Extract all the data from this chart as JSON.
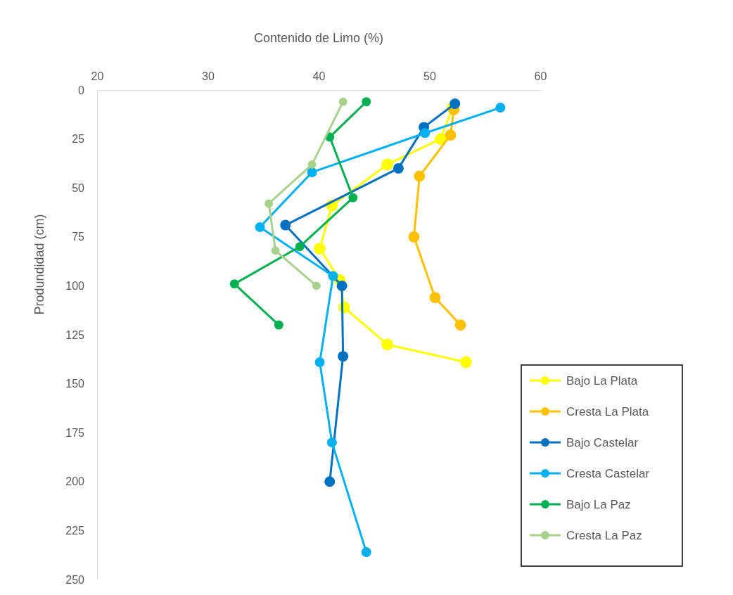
{
  "chart_data": {
    "type": "line",
    "xlabel": "Contenido de Limo (%)",
    "ylabel": "Produndidad (cm)",
    "xlim": [
      20,
      60
    ],
    "xticks": [
      20,
      30,
      40,
      50,
      60
    ],
    "ylim": [
      250,
      0
    ],
    "yticks": [
      0,
      25,
      50,
      75,
      100,
      125,
      150,
      175,
      200,
      225,
      250
    ],
    "grid": false,
    "legend": "bottom right",
    "marker": "circle",
    "line_style": "solid",
    "series": [
      {
        "name": "Bajo La Plata",
        "color": "#ffff00",
        "x": [
          52.1,
          51.0,
          46.2,
          41.2,
          40.1,
          41.9,
          42.3,
          46.2,
          53.3
        ],
        "values": [
          9,
          25,
          38,
          59,
          81,
          97,
          111,
          130,
          139
        ]
      },
      {
        "name": "Cresta La Plata",
        "color": "#ffc000",
        "x": [
          52.2,
          51.9,
          49.1,
          48.6,
          50.5,
          52.8
        ],
        "values": [
          10,
          23,
          44,
          75,
          106,
          120
        ]
      },
      {
        "name": "Bajo Castelar",
        "color": "#0070c0",
        "x": [
          52.3,
          49.5,
          47.2,
          37.0,
          42.1,
          42.2,
          41.0
        ],
        "values": [
          7,
          19,
          40,
          69,
          100,
          136,
          200
        ]
      },
      {
        "name": "Cresta  Castelar",
        "color": "#00b0f0",
        "x": [
          56.4,
          49.6,
          39.4,
          34.7,
          41.3,
          40.1,
          41.2,
          44.3
        ],
        "values": [
          9,
          22,
          42,
          70,
          95,
          139,
          180,
          236
        ]
      },
      {
        "name": "Bajo La Paz",
        "color": "#00b050",
        "x": [
          44.3,
          41.0,
          43.1,
          38.3,
          32.4,
          36.4
        ],
        "values": [
          6,
          24,
          55,
          80,
          99,
          120
        ]
      },
      {
        "name": "Cresta La Paz",
        "color": "#a9d18e",
        "x": [
          42.2,
          39.4,
          35.5,
          36.1,
          39.8
        ],
        "values": [
          6,
          38,
          58,
          82,
          100
        ]
      }
    ]
  }
}
